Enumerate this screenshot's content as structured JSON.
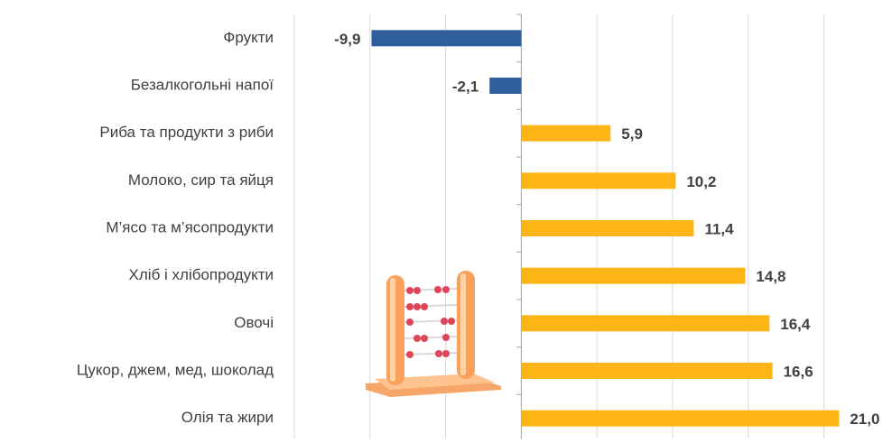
{
  "chart_data": {
    "type": "hbar",
    "categories": [
      "Фрукти",
      "Безалкогольні напої",
      "Риба та продукти з риби",
      "Молоко, сир та яйця",
      "М’ясо та м’ясопродукти",
      "Хліб і хлібопродукти",
      "Овочі",
      "Цукор, джем, мед, шоколад",
      "Олія та жири"
    ],
    "values": [
      -9.9,
      -2.1,
      5.9,
      10.2,
      11.4,
      14.8,
      16.4,
      16.6,
      21.0
    ],
    "value_labels": [
      "-9,9",
      "-2,1",
      "5,9",
      "10,2",
      "11,4",
      "14,8",
      "16,4",
      "16,6",
      "21,0"
    ],
    "color": "#fdb515",
    "negative_color": "#2e5e9b",
    "xlim": [
      -15,
      24.5
    ],
    "xticks": [
      -15,
      -10,
      -5,
      0,
      5,
      10,
      15,
      20
    ],
    "grid": true
  }
}
